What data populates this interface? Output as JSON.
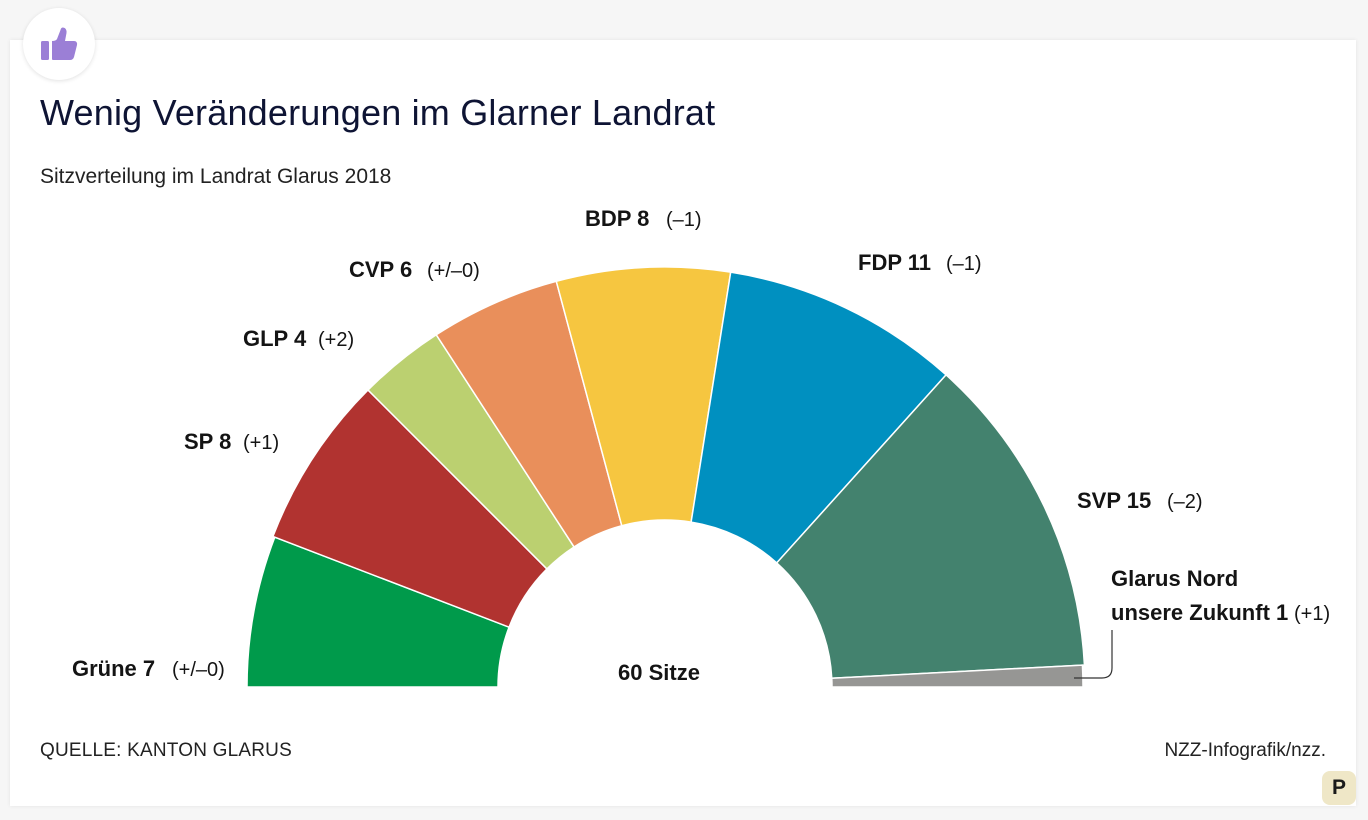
{
  "header": {
    "title": "Wenig Veränderungen im Glarner Landrat",
    "subtitle": "Sitzverteilung im Landrat Glarus 2018"
  },
  "footer": {
    "source": "QUELLE: KANTON GLARUS",
    "credit": "NZZ-Infografik/nzz."
  },
  "badges": {
    "thumb_icon": "thumbs-up-icon",
    "thumb_color": "#9b7fd6",
    "corner_letter": "P"
  },
  "chart_data": {
    "type": "parliament-semicircle",
    "title": "Wenig Veränderungen im Glarner Landrat",
    "subtitle": "Sitzverteilung im Landrat Glarus 2018",
    "total_seats": 60,
    "center_label": "60 Sitze",
    "parties": [
      {
        "name": "Grüne",
        "label": "Grüne 7",
        "seats": 7,
        "change": "(+/–0)",
        "color": "#009a4b"
      },
      {
        "name": "SP",
        "label": "SP 8",
        "seats": 8,
        "change": "(+1)",
        "color": "#b13330"
      },
      {
        "name": "GLP",
        "label": "GLP 4",
        "seats": 4,
        "change": "(+2)",
        "color": "#bbd070"
      },
      {
        "name": "CVP",
        "label": "CVP 6",
        "seats": 6,
        "change": "(+/–0)",
        "color": "#e98f5b"
      },
      {
        "name": "BDP",
        "label": "BDP 8",
        "seats": 8,
        "change": "(–1)",
        "color": "#f6c640"
      },
      {
        "name": "FDP",
        "label": "FDP 11",
        "seats": 11,
        "change": "(–1)",
        "color": "#0090c0"
      },
      {
        "name": "SVP",
        "label": "SVP 15",
        "seats": 15,
        "change": "(–2)",
        "color": "#43826e"
      },
      {
        "name": "Glarus Nord unsere Zukunft",
        "label_lines": [
          "Glarus Nord",
          "unsere Zukunft 1"
        ],
        "seats": 1,
        "change": "(+1)",
        "color": "#969694"
      }
    ]
  }
}
